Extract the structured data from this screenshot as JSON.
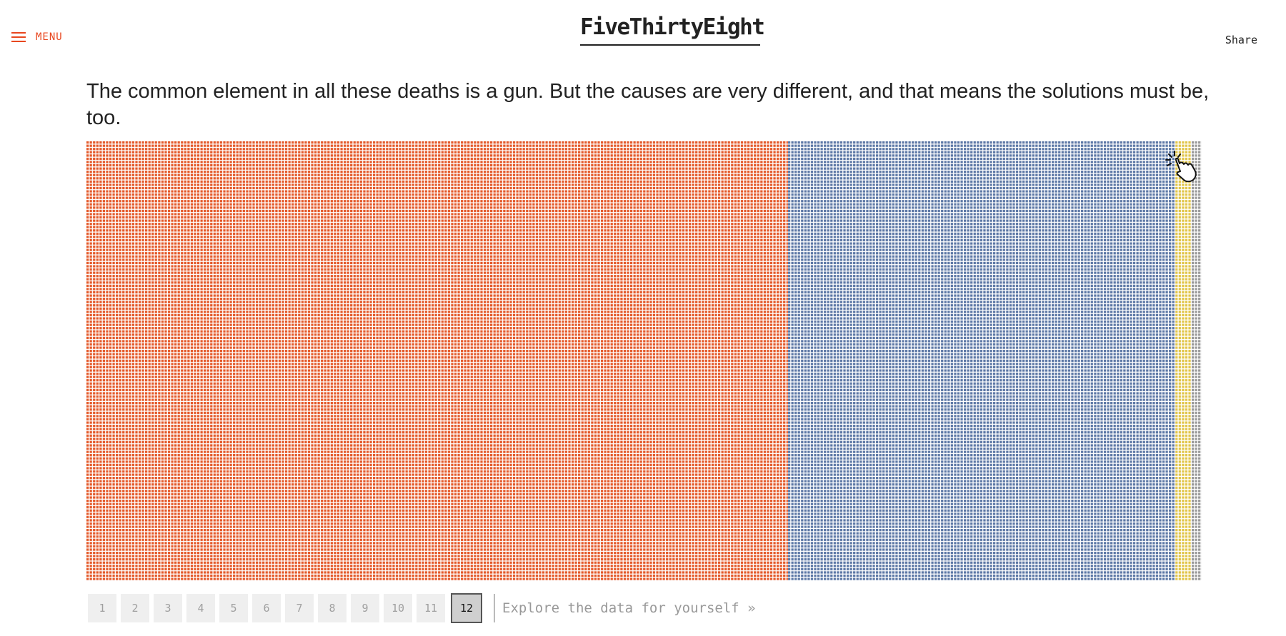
{
  "header": {
    "menu_label": "MENU",
    "logo": "FiveThirtyEight",
    "share_label": "Share"
  },
  "headline": "The common element in all these deaths is a gun. But the causes are very different, and that means the solutions must be, too.",
  "colors": {
    "accent": "#e8471f",
    "orange": "#e45a2b",
    "blue": "#5d78a6",
    "yellow": "#e1c54a",
    "gray": "#9a9a9a",
    "dot_gap": "#ffffff"
  },
  "chart_data": {
    "type": "waffle",
    "unit": "one dot per gun death",
    "columns_total": 345,
    "rows_total": 135,
    "groups": [
      {
        "color": "orange",
        "columns": 215.5
      },
      {
        "color": "blue",
        "columns": 119
      },
      {
        "color": "yellow",
        "columns": 5
      },
      {
        "color": "gray",
        "columns": 3
      }
    ]
  },
  "pager": {
    "pages": [
      "1",
      "2",
      "3",
      "4",
      "5",
      "6",
      "7",
      "8",
      "9",
      "10",
      "11",
      "12"
    ],
    "active": "12",
    "explore_label": "Explore the data for yourself »"
  },
  "icons": {
    "menu": "hamburger-icon",
    "cursor": "pointer-hand-icon"
  }
}
